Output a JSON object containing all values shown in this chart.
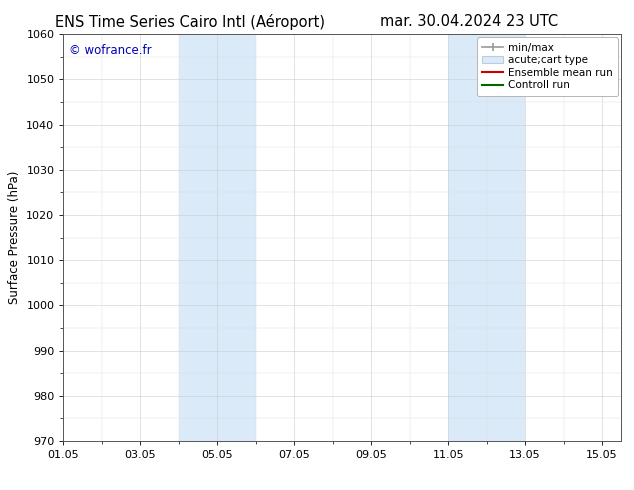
{
  "title_left": "ENS Time Series Cairo Intl (Aéroport)",
  "title_right": "mar. 30.04.2024 23 UTC",
  "ylabel": "Surface Pressure (hPa)",
  "ylim": [
    970,
    1060
  ],
  "yticks": [
    970,
    980,
    990,
    1000,
    1010,
    1020,
    1030,
    1040,
    1050,
    1060
  ],
  "xlim_start": 1,
  "xlim_end": 15.5,
  "xtick_labels": [
    "01.05",
    "03.05",
    "05.05",
    "07.05",
    "09.05",
    "11.05",
    "13.05",
    "15.05"
  ],
  "xtick_positions": [
    1,
    3,
    5,
    7,
    9,
    11,
    13,
    15
  ],
  "shaded_bands": [
    {
      "x_start": 4.0,
      "x_end": 6.0
    },
    {
      "x_start": 11.0,
      "x_end": 13.0
    }
  ],
  "background_color": "#ffffff",
  "band_color": "#daeaf8",
  "watermark_text": "© wofrance.fr",
  "watermark_color": "#0000bb",
  "legend_entries": [
    {
      "label": "min/max"
    },
    {
      "label": "acute;cart type"
    },
    {
      "label": "Ensemble mean run"
    },
    {
      "label": "Controll run"
    }
  ],
  "title_fontsize": 10.5,
  "axis_fontsize": 8.5,
  "tick_fontsize": 8,
  "legend_fontsize": 7.5
}
